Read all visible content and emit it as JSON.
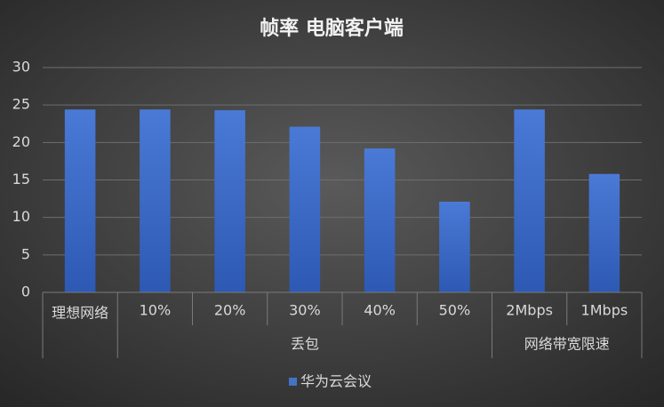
{
  "chart_data": {
    "type": "bar",
    "title": "帧率 电脑客户端",
    "categories": [
      "理想网络",
      "10%",
      "20%",
      "30%",
      "40%",
      "50%",
      "2Mbps",
      "1Mbps"
    ],
    "groups": [
      null,
      "丢包",
      "丢包",
      "丢包",
      "丢包",
      "丢包",
      "网络带宽限速",
      "网络带宽限速"
    ],
    "series": [
      {
        "name": "华为云会议",
        "color": "#4472c4",
        "values": [
          24.4,
          24.4,
          24.3,
          22.1,
          19.2,
          12.1,
          24.4,
          15.8
        ]
      }
    ],
    "ylim": [
      0,
      30
    ],
    "yticks": [
      0,
      5,
      10,
      15,
      20,
      25,
      30
    ],
    "grid": true
  }
}
